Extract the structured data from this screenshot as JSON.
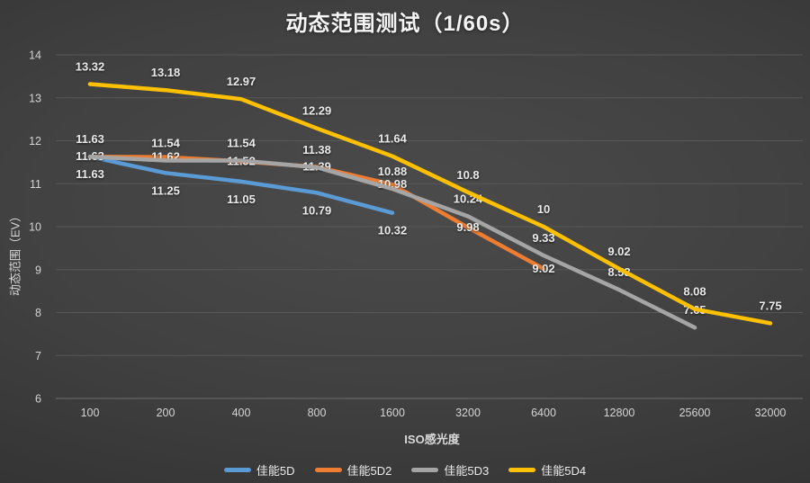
{
  "title": "动态范围测试（1/60s）",
  "axes": {
    "xlabel": "ISO感光度",
    "ylabel": "动态范围（EV）"
  },
  "chart_data": {
    "type": "line",
    "x_categories": [
      "100",
      "200",
      "400",
      "800",
      "1600",
      "3200",
      "6400",
      "12800",
      "25600",
      "32000"
    ],
    "xlabel": "ISO感光度",
    "ylabel": "动态范围（EV）",
    "ylim": [
      6,
      14
    ],
    "ytick_step": 1,
    "grid": true,
    "legend_position": "bottom",
    "title": "动态范围测试（1/60s）",
    "series": [
      {
        "name": "佳能5D",
        "color": "#5B9BD5",
        "label_position": "below",
        "values": [
          11.63,
          11.25,
          11.05,
          10.79,
          10.32
        ]
      },
      {
        "name": "佳能5D2",
        "color": "#ED7D31",
        "label_position": "center",
        "values": [
          11.63,
          11.62,
          11.52,
          11.39,
          10.98,
          9.98,
          9.02
        ]
      },
      {
        "name": "佳能5D3",
        "color": "#A5A5A5",
        "label_position": "above",
        "values": [
          11.63,
          11.54,
          11.54,
          11.38,
          10.88,
          10.24,
          9.33,
          8.53,
          7.65
        ]
      },
      {
        "name": "佳能5D4",
        "color": "#FFC000",
        "label_position": "above",
        "values": [
          13.32,
          13.18,
          12.97,
          12.29,
          11.64,
          10.8,
          10,
          9.02,
          8.08,
          7.75
        ]
      }
    ]
  }
}
